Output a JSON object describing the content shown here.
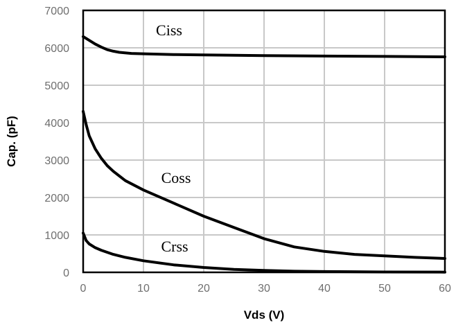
{
  "chart_data": {
    "type": "line",
    "title": "",
    "xlabel": "Vds (V)",
    "ylabel": "Cap. (pF)",
    "xlim": [
      0,
      60
    ],
    "ylim": [
      0,
      7000
    ],
    "x_ticks": [
      "0",
      "10",
      "20",
      "30",
      "40",
      "50",
      "60"
    ],
    "y_ticks": [
      "0",
      "1000",
      "2000",
      "3000",
      "4000",
      "5000",
      "6000",
      "7000"
    ],
    "grid": true,
    "series": [
      {
        "name": "Ciss",
        "x": [
          0,
          1,
          2,
          3,
          4,
          5,
          6,
          8,
          10,
          15,
          20,
          25,
          30,
          40,
          50,
          60
        ],
        "values": [
          6300,
          6200,
          6100,
          6020,
          5950,
          5910,
          5880,
          5850,
          5840,
          5820,
          5810,
          5800,
          5790,
          5780,
          5770,
          5760
        ]
      },
      {
        "name": "Coss",
        "x": [
          0,
          0.5,
          1,
          2,
          3,
          4,
          5,
          7,
          10,
          15,
          20,
          25,
          30,
          35,
          40,
          45,
          50,
          55,
          60
        ],
        "values": [
          4300,
          3950,
          3650,
          3300,
          3050,
          2850,
          2700,
          2450,
          2200,
          1850,
          1500,
          1200,
          900,
          680,
          560,
          480,
          440,
          400,
          370
        ]
      },
      {
        "name": "Crss",
        "x": [
          0,
          0.5,
          1,
          2,
          3,
          5,
          7,
          10,
          15,
          20,
          25,
          30,
          35,
          40,
          50,
          60
        ],
        "values": [
          1050,
          850,
          760,
          660,
          590,
          480,
          400,
          310,
          200,
          130,
          80,
          50,
          30,
          20,
          10,
          5
        ]
      }
    ]
  }
}
